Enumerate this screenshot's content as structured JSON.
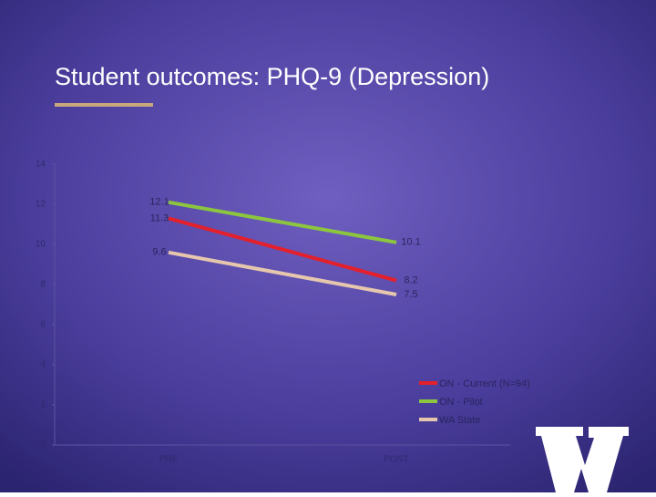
{
  "chart_data": {
    "type": "line",
    "title": "Student outcomes: PHQ-9 (Depression)",
    "categories": [
      "PRE",
      "POST"
    ],
    "series": [
      {
        "name": "ON - Current (N=94)",
        "color": "#e3202b",
        "values": [
          11.3,
          8.2
        ]
      },
      {
        "name": "ON - Pilot",
        "color": "#8cc63f",
        "values": [
          12.1,
          10.1
        ]
      },
      {
        "name": "WA State",
        "color": "#e6c7ae",
        "values": [
          9.6,
          7.5
        ]
      }
    ],
    "ylim": [
      0,
      14
    ],
    "yticks": [
      0,
      2,
      4,
      6,
      8,
      10,
      12,
      14
    ],
    "grid": false,
    "legend": "right"
  }
}
